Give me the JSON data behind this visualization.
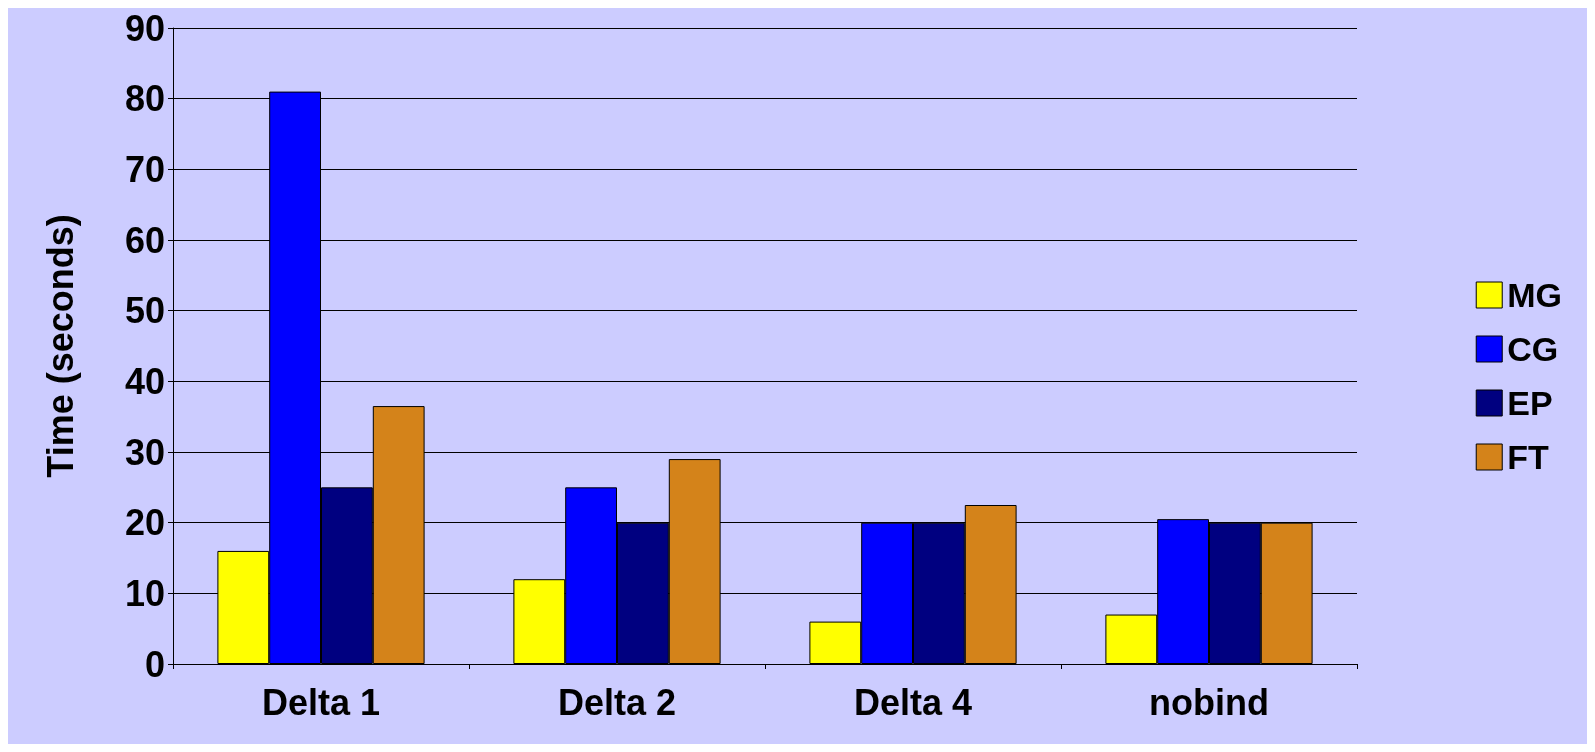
{
  "chart_data": {
    "type": "bar",
    "ylabel": "Time (seconds)",
    "categories": [
      "Delta 1",
      "Delta 2",
      "Delta 4",
      "nobind"
    ],
    "series": [
      {
        "name": "MG",
        "color": "#ffff00",
        "values": [
          16,
          12,
          6,
          7
        ]
      },
      {
        "name": "CG",
        "color": "#0000ff",
        "values": [
          81,
          25,
          20,
          20.5
        ]
      },
      {
        "name": "EP",
        "color": "#000080",
        "values": [
          25,
          20,
          20,
          20
        ]
      },
      {
        "name": "FT",
        "color": "#d4831a",
        "values": [
          36.5,
          29,
          22.5,
          20
        ]
      }
    ],
    "ylim": [
      0,
      90
    ],
    "yticks": [
      0,
      10,
      20,
      30,
      40,
      50,
      60,
      70,
      80,
      90
    ],
    "grid": "y",
    "legend": "right"
  }
}
